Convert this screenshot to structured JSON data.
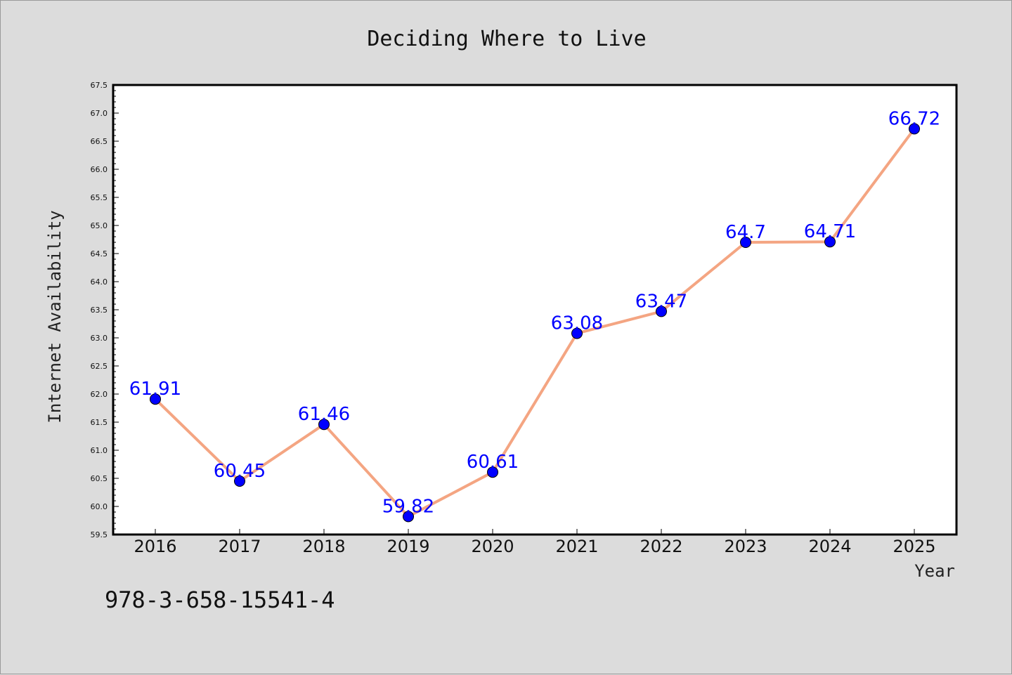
{
  "footer_text": "978-3-658-15541-4",
  "chart_data": {
    "type": "line",
    "title": "Deciding Where to Live",
    "xlabel": "Year",
    "ylabel": "Internet Availability",
    "categories": [
      "2016",
      "2017",
      "2018",
      "2019",
      "2020",
      "2021",
      "2022",
      "2023",
      "2024",
      "2025"
    ],
    "series": [
      {
        "values": [
          61.91,
          60.45,
          61.46,
          59.82,
          60.61,
          63.08,
          63.47,
          64.7,
          64.71,
          66.72
        ],
        "labels": [
          "61.91",
          "60.45",
          "61.46",
          "59.82",
          "60.61",
          "63.08",
          "63.47",
          "64.7",
          "64.71",
          "66.72"
        ],
        "line_color": "#f4a582",
        "marker_color": "#0000ff"
      }
    ],
    "ylim": [
      59.5,
      67.5
    ],
    "yticks": [
      "59.5",
      "60.0",
      "60.5",
      "61.0",
      "61.5",
      "62.0",
      "62.5",
      "63.0",
      "63.5",
      "64.0",
      "64.5",
      "65.0",
      "65.5",
      "66.0",
      "66.5",
      "67.0",
      "67.5"
    ],
    "grid": false,
    "legend": "none",
    "background": "#dcdcdc",
    "plot_background": "#ffffff"
  }
}
